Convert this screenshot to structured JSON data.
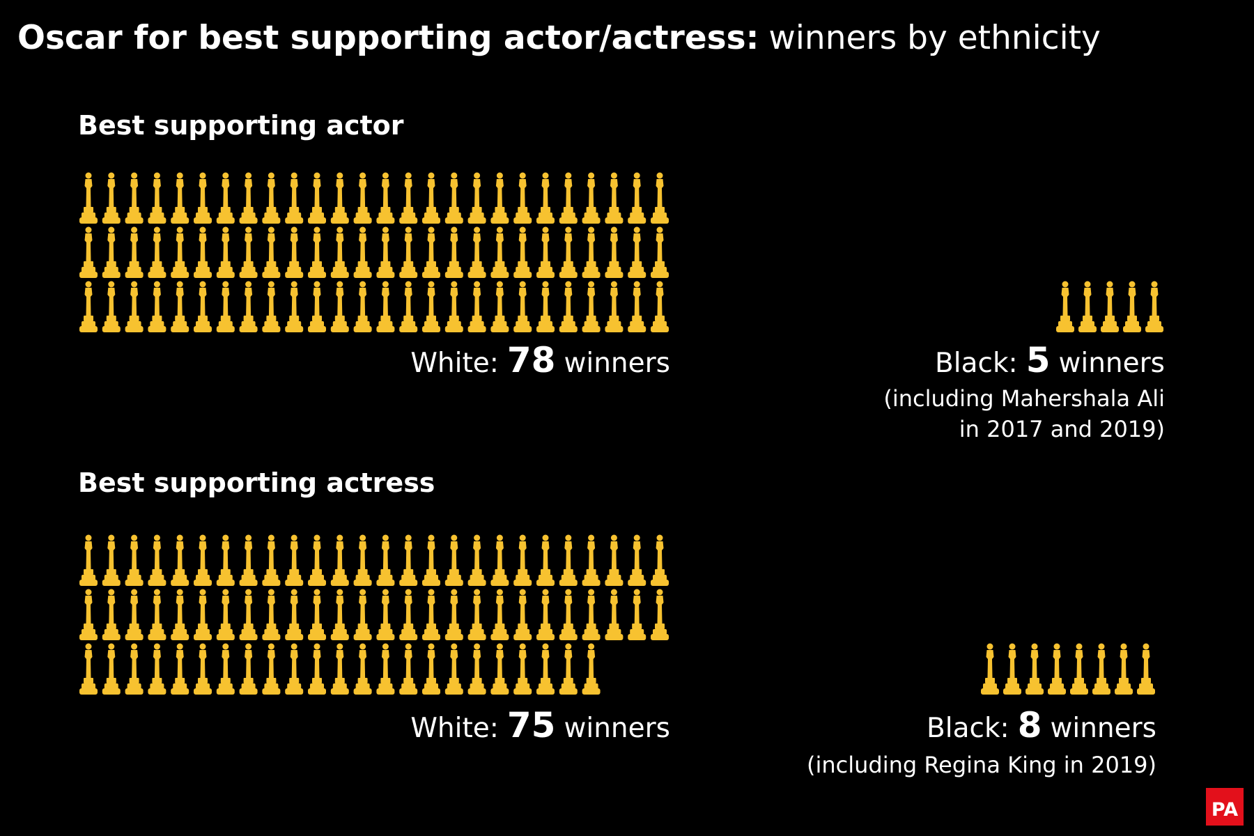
{
  "title_bold": "Oscar for best supporting actor/actress:",
  "title_rest": "winners by ethnicity",
  "logo": "PA",
  "chart_data": [
    {
      "type": "pictograph",
      "title": "Best supporting actor",
      "color": "#f7c230",
      "groups": [
        {
          "label": "White:",
          "value": 78,
          "unit": "winners",
          "note": []
        },
        {
          "label": "Black:",
          "value": 5,
          "unit": "winners",
          "note": [
            "(including Mahershala Ali",
            "in 2017 and 2019)"
          ]
        }
      ]
    },
    {
      "type": "pictograph",
      "title": "Best supporting actress",
      "color": "#f7c230",
      "groups": [
        {
          "label": "White:",
          "value": 75,
          "unit": "winners",
          "note": []
        },
        {
          "label": "Black:",
          "value": 8,
          "unit": "winners",
          "note": [
            "(including Regina King in 2019)"
          ]
        }
      ]
    }
  ]
}
